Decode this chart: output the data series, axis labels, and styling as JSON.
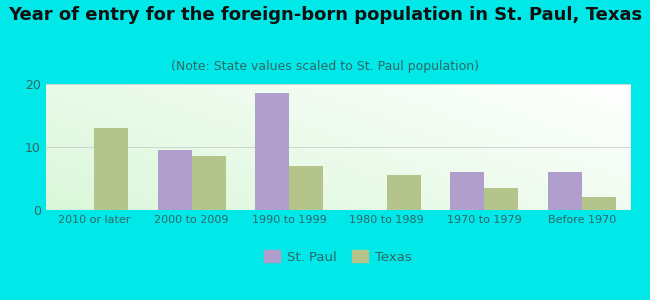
{
  "title": "Year of entry for the foreign-born population in St. Paul, Texas",
  "subtitle": "(Note: State values scaled to St. Paul population)",
  "categories": [
    "2010 or later",
    "2000 to 2009",
    "1990 to 1999",
    "1980 to 1989",
    "1970 to 1979",
    "Before 1970"
  ],
  "st_paul_values": [
    0,
    9.5,
    18.5,
    0,
    6.0,
    6.0
  ],
  "texas_values": [
    13.0,
    8.5,
    7.0,
    5.5,
    3.5,
    2.0
  ],
  "st_paul_color": "#b09fcc",
  "texas_color": "#b5c48a",
  "background_outer": "#00e8e8",
  "ylim": [
    0,
    20
  ],
  "yticks": [
    0,
    10,
    20
  ],
  "bar_width": 0.35,
  "title_fontsize": 13,
  "subtitle_fontsize": 9,
  "legend_st_paul": "St. Paul",
  "legend_texas": "Texas",
  "tick_color": "#336666",
  "grid_color": "#cccccc",
  "title_color": "#111111",
  "subtitle_color": "#336666"
}
